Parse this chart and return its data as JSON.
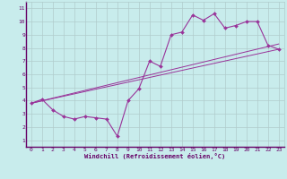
{
  "xlabel": "Windchill (Refroidissement éolien,°C)",
  "bg_color": "#c8ecec",
  "axis_bar_color": "#660066",
  "line_color": "#993399",
  "grid_color": "#b0cccc",
  "xlim": [
    -0.5,
    23.5
  ],
  "ylim": [
    0.5,
    11.5
  ],
  "xticks": [
    0,
    1,
    2,
    3,
    4,
    5,
    6,
    7,
    8,
    9,
    10,
    11,
    12,
    13,
    14,
    15,
    16,
    17,
    18,
    19,
    20,
    21,
    22,
    23
  ],
  "yticks": [
    1,
    2,
    3,
    4,
    5,
    6,
    7,
    8,
    9,
    10,
    11
  ],
  "line1_x": [
    0,
    1,
    2,
    3,
    4,
    5,
    6,
    7,
    8,
    9,
    10,
    11,
    12,
    13,
    14,
    15,
    16,
    17,
    18,
    19,
    20,
    21,
    22,
    23
  ],
  "line1_y": [
    3.8,
    4.1,
    3.3,
    2.8,
    2.6,
    2.8,
    2.7,
    2.6,
    1.3,
    4.0,
    4.9,
    7.0,
    6.6,
    9.0,
    9.2,
    10.5,
    10.1,
    10.6,
    9.5,
    9.7,
    10.0,
    10.0,
    8.2,
    7.9
  ],
  "line2_x": [
    0,
    23
  ],
  "line2_y": [
    3.8,
    8.3
  ],
  "line3_x": [
    0,
    23
  ],
  "line3_y": [
    3.8,
    7.9
  ],
  "tick_fontsize": 4.5,
  "xlabel_fontsize": 5.0
}
